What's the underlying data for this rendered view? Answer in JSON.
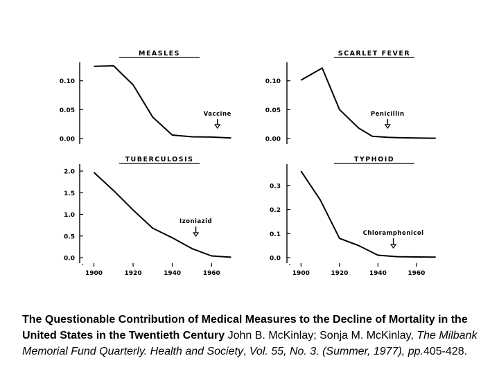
{
  "chart_data": [
    {
      "type": "line",
      "title": "MEASLES",
      "x": [
        1900,
        1910,
        1920,
        1930,
        1940,
        1950,
        1960,
        1970
      ],
      "y": [
        0.125,
        0.126,
        0.093,
        0.037,
        0.006,
        0.003,
        0.0025,
        0.001
      ],
      "xlim": [
        1897,
        1973
      ],
      "ylim": [
        0,
        0.12
      ],
      "yticks": [
        0.1,
        0.05,
        0.0
      ],
      "ytick_labels": [
        "0.10",
        "0.05",
        "0.00"
      ],
      "annotation": {
        "text": "Vaccine",
        "x": 1963
      }
    },
    {
      "type": "line",
      "title": "SCARLET FEVER",
      "x": [
        1900,
        1911,
        1920,
        1930,
        1937,
        1945,
        1950,
        1960,
        1970
      ],
      "y": [
        0.101,
        0.122,
        0.05,
        0.018,
        0.004,
        0.002,
        0.0015,
        0.001,
        0.0005
      ],
      "xlim": [
        1897,
        1973
      ],
      "ylim": [
        0,
        0.12
      ],
      "yticks": [
        0.1,
        0.05,
        0.0
      ],
      "ytick_labels": [
        "0.10",
        "0.05",
        "0.00"
      ],
      "annotation": {
        "text": "Penicillin",
        "x": 1945
      }
    },
    {
      "type": "line",
      "title": "TUBERCULOSIS",
      "x": [
        1900,
        1910,
        1920,
        1930,
        1940,
        1950,
        1960,
        1970
      ],
      "y": [
        1.97,
        1.55,
        1.1,
        0.68,
        0.46,
        0.21,
        0.04,
        0.01
      ],
      "xlim": [
        1897,
        1973
      ],
      "ylim": [
        0,
        2.0
      ],
      "yticks": [
        2.0,
        1.5,
        1.0,
        0.5,
        0.0
      ],
      "ytick_labels": [
        "2.0",
        "1.5",
        "1.0",
        "0.5",
        "0.0"
      ],
      "xticks": [
        1900,
        1920,
        1940,
        1960
      ],
      "xtick_labels": [
        "1900",
        "1920",
        "1940",
        "1960"
      ],
      "annotation": {
        "text": "Izoniazid",
        "x": 1952
      }
    },
    {
      "type": "line",
      "title": "TYPHOID",
      "x": [
        1900,
        1910,
        1920,
        1930,
        1940,
        1950,
        1960,
        1970
      ],
      "y": [
        0.36,
        0.24,
        0.08,
        0.05,
        0.01,
        0.004,
        0.003,
        0.002
      ],
      "xlim": [
        1897,
        1973
      ],
      "ylim": [
        0,
        0.36
      ],
      "yticks": [
        0.3,
        0.2,
        0.1,
        0.0
      ],
      "ytick_labels": [
        "0.3",
        "0.2",
        "0.1",
        "0.0"
      ],
      "xticks": [
        1900,
        1920,
        1940,
        1960
      ],
      "xtick_labels": [
        "1900",
        "1920",
        "1940",
        "1960"
      ],
      "annotation": {
        "text": "Chloramphenicol",
        "x": 1948
      }
    }
  ],
  "caption": {
    "title_bold": "The Questionable Contribution of Medical Measures to the Decline of Mortality in the United States in the Twentieth Century",
    "authors_1": "  John B. McKinlay; Sonja M. McKinlay, ",
    "journal_italic": "The Milbank Memorial Fund Quarterly. Health and Society",
    "sep": ", ",
    "volume_italic": "Vol. 55, No. 3. (Summer, 1977), pp.",
    "pages": "405-428."
  }
}
